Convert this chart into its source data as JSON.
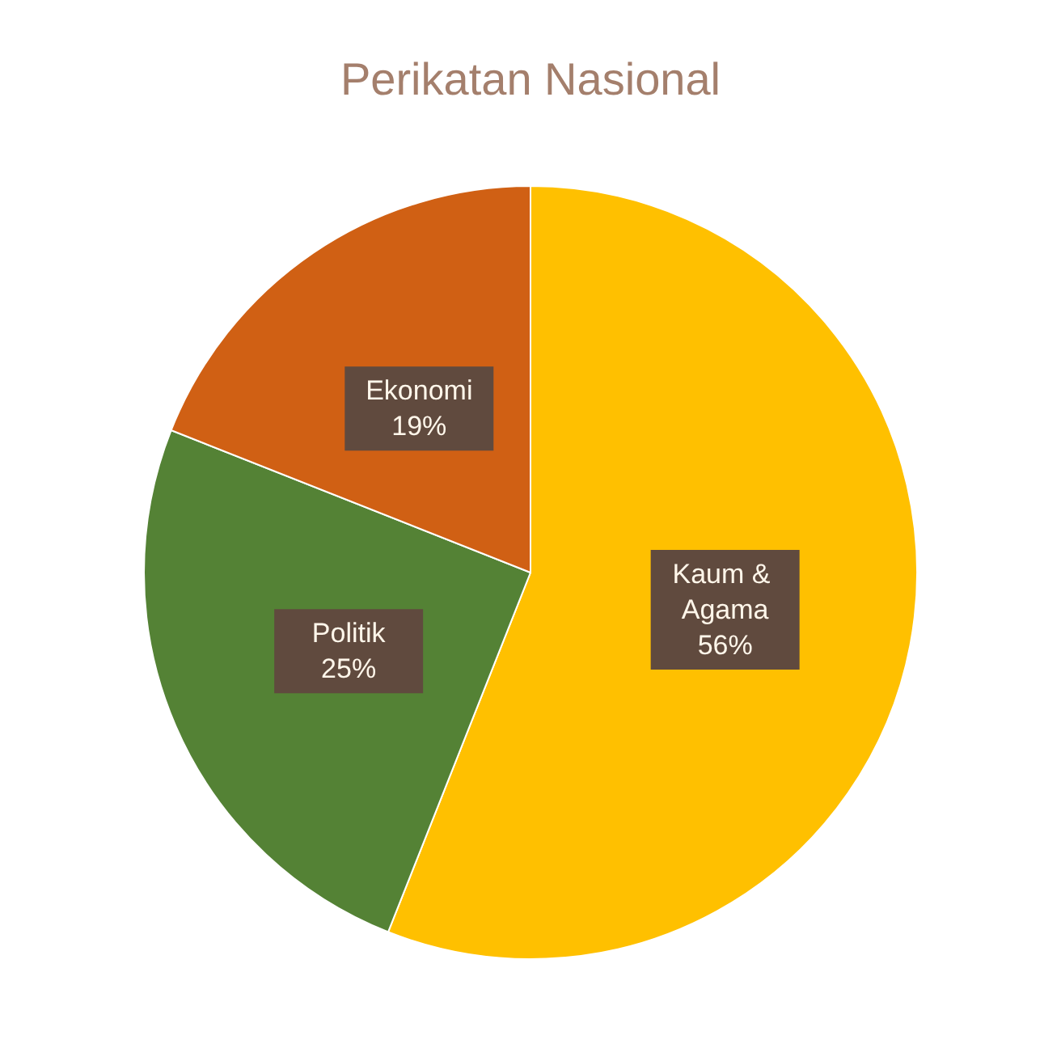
{
  "chart_data": {
    "type": "pie",
    "title": "Perikatan Nasional",
    "categories": [
      "Kaum & Agama",
      "Politik",
      "Ekonomi"
    ],
    "values": [
      56,
      25,
      19
    ],
    "colors": [
      "#ffc000",
      "#548235",
      "#d06014"
    ],
    "value_labels": [
      "56%",
      "25%",
      "19%"
    ]
  }
}
